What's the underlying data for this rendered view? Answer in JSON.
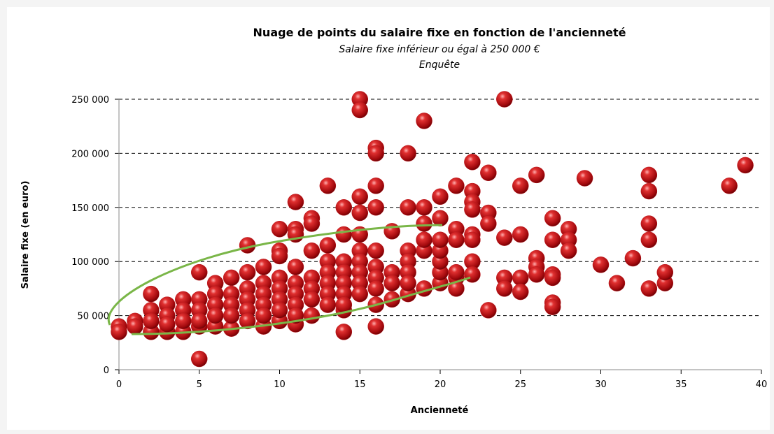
{
  "chart_data": {
    "type": "scatter",
    "title": "Nuage de points du salaire fixe en fonction de l'ancienneté",
    "subtitle": [
      "Salaire fixe inférieur ou égal à 250 000 €",
      "Enquête"
    ],
    "xlabel": "Ancienneté",
    "ylabel": "Salaire  fixe (en euro)",
    "color": "#c0161b",
    "grid": true,
    "xlim": [
      0,
      40
    ],
    "xticks": [
      0,
      5,
      10,
      15,
      20,
      25,
      30,
      35,
      40
    ],
    "ylim": [
      0,
      250000
    ],
    "yticks": [
      0,
      {
        "value": 50000,
        "label": "50 000"
      },
      {
        "value": 100000,
        "label": "100 000"
      },
      {
        "value": 150000,
        "label": "150 000"
      },
      {
        "value": 200000,
        "label": "200 000"
      },
      {
        "value": 250000,
        "label": "250 000"
      }
    ],
    "x": [
      15,
      15,
      24,
      19,
      16,
      16,
      18,
      22,
      23,
      26,
      33,
      39,
      29,
      38,
      33,
      25,
      21,
      22,
      22,
      22,
      13,
      16,
      15,
      11,
      14,
      16,
      18,
      19,
      20,
      15,
      12,
      12,
      23,
      23,
      27,
      28,
      17,
      20,
      19,
      10,
      11,
      11,
      13,
      14,
      15,
      21,
      21,
      22,
      22,
      24,
      25,
      27,
      28,
      28,
      33,
      33,
      30,
      32,
      26,
      26,
      26,
      27,
      27,
      25,
      25,
      24,
      24,
      22,
      22,
      31,
      33,
      34,
      34,
      27,
      27,
      23,
      16,
      14,
      5,
      8,
      10,
      10,
      12,
      13,
      9,
      8,
      7,
      6,
      5,
      4,
      3,
      2,
      2,
      1,
      0,
      0,
      1,
      2,
      3,
      4,
      5,
      6,
      7,
      9,
      10,
      11,
      12,
      14,
      16,
      17,
      18,
      19,
      20,
      20,
      20,
      20,
      20,
      19,
      19,
      18,
      18,
      18,
      18,
      17,
      17,
      16,
      16,
      16,
      16,
      15,
      15,
      15,
      15,
      15,
      14,
      14,
      14,
      14,
      14,
      13,
      13,
      13,
      13,
      12,
      12,
      12,
      11,
      11,
      11,
      11,
      11,
      10,
      10,
      10,
      10,
      9,
      9,
      9,
      9,
      8,
      8,
      8,
      8,
      7,
      7,
      7,
      6,
      6,
      6,
      5,
      5,
      5,
      4,
      4,
      3,
      3,
      2,
      21,
      21,
      21
    ],
    "y": [
      250000,
      240000,
      250000,
      230000,
      205000,
      200000,
      200000,
      192000,
      182000,
      180000,
      180000,
      189000,
      177000,
      170000,
      165000,
      170000,
      170000,
      165000,
      155000,
      148000,
      170000,
      170000,
      160000,
      155000,
      150000,
      150000,
      150000,
      150000,
      160000,
      145000,
      140000,
      135000,
      145000,
      135000,
      140000,
      130000,
      128000,
      140000,
      135000,
      130000,
      130000,
      125000,
      115000,
      125000,
      125000,
      130000,
      120000,
      125000,
      120000,
      122000,
      125000,
      120000,
      120000,
      110000,
      135000,
      120000,
      97000,
      103000,
      103000,
      95000,
      88000,
      88000,
      85000,
      85000,
      72000,
      85000,
      75000,
      100000,
      88000,
      80000,
      75000,
      80000,
      90000,
      62000,
      58000,
      55000,
      40000,
      35000,
      10000,
      115000,
      110000,
      105000,
      110000,
      100000,
      95000,
      90000,
      85000,
      80000,
      90000,
      65000,
      60000,
      70000,
      55000,
      45000,
      40000,
      35000,
      40000,
      35000,
      35000,
      35000,
      40000,
      40000,
      38000,
      40000,
      45000,
      42000,
      50000,
      55000,
      60000,
      65000,
      70000,
      75000,
      80000,
      90000,
      100000,
      110000,
      120000,
      110000,
      120000,
      110000,
      100000,
      90000,
      80000,
      90000,
      80000,
      110000,
      95000,
      85000,
      75000,
      110000,
      100000,
      90000,
      80000,
      70000,
      100000,
      90000,
      80000,
      70000,
      60000,
      90000,
      80000,
      70000,
      60000,
      85000,
      75000,
      65000,
      95000,
      80000,
      70000,
      60000,
      50000,
      85000,
      75000,
      65000,
      55000,
      80000,
      70000,
      60000,
      50000,
      75000,
      65000,
      55000,
      45000,
      70000,
      60000,
      50000,
      70000,
      60000,
      50000,
      65000,
      55000,
      45000,
      55000,
      45000,
      50000,
      42000,
      45000,
      85000,
      75000,
      90000
    ]
  }
}
